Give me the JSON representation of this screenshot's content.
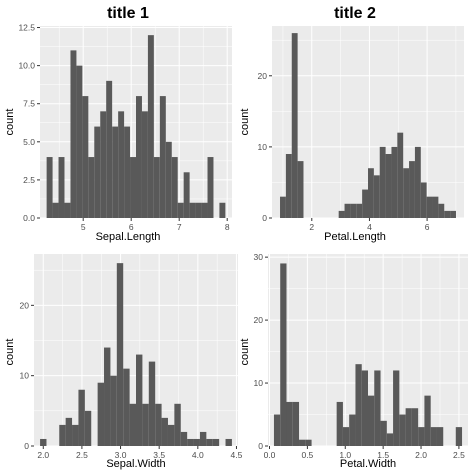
{
  "chart_data": [
    {
      "type": "bar",
      "title": "title 1",
      "xlabel": "Sepal.Length",
      "ylabel": "count",
      "x": [
        4.3,
        4.424,
        4.548,
        4.672,
        4.797,
        4.921,
        5.045,
        5.169,
        5.293,
        5.417,
        5.541,
        5.666,
        5.79,
        5.914,
        6.038,
        6.162,
        6.286,
        6.41,
        6.534,
        6.659,
        6.783,
        6.907,
        7.031,
        7.155,
        7.279,
        7.403,
        7.528,
        7.652,
        7.776,
        7.9
      ],
      "bin_width": 0.124,
      "values": [
        4,
        1,
        4,
        1,
        11,
        10,
        8,
        4,
        6,
        7,
        9,
        6,
        7,
        6,
        4,
        8,
        7,
        12,
        4,
        8,
        5,
        4,
        1,
        3,
        1,
        1,
        1,
        4,
        0,
        1
      ],
      "xlim": [
        4.1,
        8.1
      ],
      "ylim": [
        0,
        12.6
      ],
      "xticks": [
        5,
        6,
        7,
        8
      ],
      "xtick_labels": [
        "5",
        "6",
        "7",
        "8"
      ],
      "yticks": [
        0,
        2.5,
        5,
        7.5,
        10,
        12.5
      ],
      "ytick_labels": [
        "0.0",
        "2.5",
        "5.0",
        "7.5",
        "10.0",
        "12.5"
      ]
    },
    {
      "type": "bar",
      "title": "title 2",
      "xlabel": "Petal.Length",
      "ylabel": "count",
      "x": [
        1.0,
        1.2034,
        1.4069,
        1.6103,
        1.8138,
        2.0172,
        2.2207,
        2.4241,
        2.6276,
        2.831,
        3.0345,
        3.2379,
        3.4414,
        3.6448,
        3.8483,
        4.0517,
        4.2552,
        4.4586,
        4.6621,
        4.8655,
        5.069,
        5.2724,
        5.4759,
        5.6793,
        5.8828,
        6.0862,
        6.2897,
        6.4931,
        6.6966,
        6.9
      ],
      "bin_width": 0.2034,
      "values": [
        3,
        9,
        26,
        8,
        0,
        0,
        0,
        0,
        0,
        0,
        1,
        2,
        2,
        2,
        4,
        7,
        6,
        10,
        9,
        10,
        12,
        7,
        8,
        10,
        5,
        3,
        3,
        2,
        1,
        1
      ],
      "xlim": [
        0.62,
        7.28
      ],
      "ylim": [
        0,
        27
      ],
      "xticks": [
        2,
        4,
        6
      ],
      "xtick_labels": [
        "2",
        "4",
        "6"
      ],
      "yticks": [
        0,
        10,
        20
      ],
      "ytick_labels": [
        "0",
        "10",
        "20"
      ]
    },
    {
      "type": "bar",
      "title": "",
      "xlabel": "Sepal.Width",
      "ylabel": "count",
      "x": [
        2.0,
        2.0828,
        2.1655,
        2.2483,
        2.331,
        2.4138,
        2.4966,
        2.5793,
        2.6621,
        2.7448,
        2.8276,
        2.9103,
        2.9931,
        3.0759,
        3.1586,
        3.2414,
        3.3241,
        3.4069,
        3.4897,
        3.5724,
        3.6552,
        3.7379,
        3.8207,
        3.9034,
        3.9862,
        4.069,
        4.1517,
        4.2345,
        4.3172,
        4.4
      ],
      "bin_width": 0.0828,
      "values": [
        1,
        0,
        0,
        3,
        4,
        3,
        8,
        5,
        0,
        9,
        14,
        10,
        26,
        11,
        6,
        13,
        6,
        12,
        6,
        4,
        3,
        6,
        2,
        1,
        1,
        2,
        1,
        1,
        0,
        1
      ],
      "xlim": [
        1.88,
        4.52
      ],
      "ylim": [
        0,
        27.3
      ],
      "xticks": [
        2.0,
        2.5,
        3.0,
        3.5,
        4.0,
        4.5
      ],
      "xtick_labels": [
        "2.0",
        "2.5",
        "3.0",
        "3.5",
        "4.0",
        "4.5"
      ],
      "yticks": [
        0,
        10,
        20
      ],
      "ytick_labels": [
        "0",
        "10",
        "20"
      ]
    },
    {
      "type": "bar",
      "title": "",
      "xlabel": "Petal.Width",
      "ylabel": "count",
      "x": [
        0.1,
        0.1828,
        0.2655,
        0.3483,
        0.431,
        0.5138,
        0.5966,
        0.6793,
        0.7621,
        0.8448,
        0.9276,
        1.0103,
        1.0931,
        1.1759,
        1.2586,
        1.3414,
        1.4241,
        1.5069,
        1.5897,
        1.6724,
        1.7552,
        1.8379,
        1.9207,
        2.0034,
        2.0862,
        2.169,
        2.2517,
        2.3345,
        2.4172,
        2.5
      ],
      "bin_width": 0.0828,
      "values": [
        5,
        29,
        7,
        7,
        1,
        1,
        0,
        0,
        0,
        0,
        7,
        3,
        5,
        13,
        12,
        8,
        12,
        4,
        2,
        12,
        5,
        6,
        6,
        3,
        8,
        3,
        3,
        0,
        0,
        3
      ],
      "xlim": [
        -0.02,
        2.62
      ],
      "ylim": [
        0,
        30.5
      ],
      "xticks": [
        0.0,
        0.5,
        1.0,
        1.5,
        2.0,
        2.5
      ],
      "xtick_labels": [
        "0.0",
        "0.5",
        "1.0",
        "1.5",
        "2.0",
        "2.5"
      ],
      "yticks": [
        0,
        10,
        20,
        30
      ],
      "ytick_labels": [
        "0",
        "10",
        "20",
        "30"
      ]
    }
  ]
}
